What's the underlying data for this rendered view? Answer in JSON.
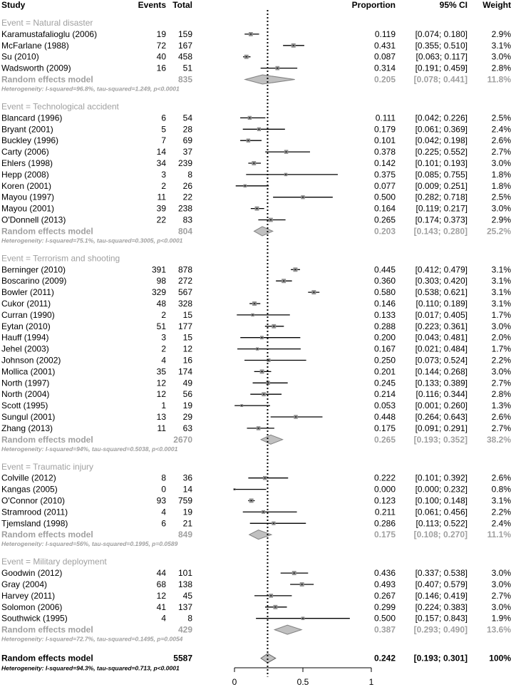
{
  "chart_data": {
    "type": "forest",
    "headers": {
      "study": "Study",
      "events": "Events",
      "total": "Total",
      "proportion": "Proportion",
      "ci": "95% CI",
      "weight": "Weight"
    },
    "x_axis": {
      "ticks": [
        0,
        0.5,
        1
      ],
      "tick_labels": [
        "0",
        "0.5",
        "1"
      ],
      "range": [
        0,
        1
      ]
    },
    "reference_line": 0.242,
    "groups": [
      {
        "label": "Event = Natural disaster",
        "studies": [
          {
            "name": "Karamustafalioglu (2006)",
            "events": "19",
            "total": "159",
            "p": 0.119,
            "lo": 0.074,
            "hi": 0.18,
            "proportion": "0.119",
            "ci": "[0.074; 0.180]",
            "weight": "2.9%"
          },
          {
            "name": "McFarlane (1988)",
            "events": "72",
            "total": "167",
            "p": 0.431,
            "lo": 0.355,
            "hi": 0.51,
            "proportion": "0.431",
            "ci": "[0.355; 0.510]",
            "weight": "3.1%"
          },
          {
            "name": "Su (2010)",
            "events": "40",
            "total": "458",
            "p": 0.087,
            "lo": 0.063,
            "hi": 0.117,
            "proportion": "0.087",
            "ci": "[0.063; 0.117]",
            "weight": "3.0%"
          },
          {
            "name": "Wadsworth (2009)",
            "events": "16",
            "total": "51",
            "p": 0.314,
            "lo": 0.191,
            "hi": 0.459,
            "proportion": "0.314",
            "ci": "[0.191; 0.459]",
            "weight": "2.8%"
          }
        ],
        "summary": {
          "label": "Random effects model",
          "total": "835",
          "p": 0.205,
          "lo": 0.078,
          "hi": 0.441,
          "proportion": "0.205",
          "ci": "[0.078; 0.441]",
          "weight": "11.8%"
        },
        "heterogeneity": "Heterogeneity: I-squared=96.8%, tau-squared=1.249, p<0.0001"
      },
      {
        "label": "Event = Technological accident",
        "studies": [
          {
            "name": "Blancard (1996)",
            "events": "6",
            "total": "54",
            "p": 0.111,
            "lo": 0.042,
            "hi": 0.226,
            "proportion": "0.111",
            "ci": "[0.042; 0.226]",
            "weight": "2.5%"
          },
          {
            "name": "Bryant (2001)",
            "events": "5",
            "total": "28",
            "p": 0.179,
            "lo": 0.061,
            "hi": 0.369,
            "proportion": "0.179",
            "ci": "[0.061; 0.369]",
            "weight": "2.4%"
          },
          {
            "name": "Buckley (1996)",
            "events": "7",
            "total": "69",
            "p": 0.101,
            "lo": 0.042,
            "hi": 0.198,
            "proportion": "0.101",
            "ci": "[0.042; 0.198]",
            "weight": "2.6%"
          },
          {
            "name": "Carty (2006)",
            "events": "14",
            "total": "37",
            "p": 0.378,
            "lo": 0.225,
            "hi": 0.552,
            "proportion": "0.378",
            "ci": "[0.225; 0.552]",
            "weight": "2.7%"
          },
          {
            "name": "Ehlers (1998)",
            "events": "34",
            "total": "239",
            "p": 0.142,
            "lo": 0.101,
            "hi": 0.193,
            "proportion": "0.142",
            "ci": "[0.101; 0.193]",
            "weight": "3.0%"
          },
          {
            "name": "Hepp (2008)",
            "events": "3",
            "total": "8",
            "p": 0.375,
            "lo": 0.085,
            "hi": 0.755,
            "proportion": "0.375",
            "ci": "[0.085; 0.755]",
            "weight": "1.8%"
          },
          {
            "name": "Koren (2001)",
            "events": "2",
            "total": "26",
            "p": 0.077,
            "lo": 0.009,
            "hi": 0.251,
            "proportion": "0.077",
            "ci": "[0.009; 0.251]",
            "weight": "1.8%"
          },
          {
            "name": "Mayou (1997)",
            "events": "11",
            "total": "22",
            "p": 0.5,
            "lo": 0.282,
            "hi": 0.718,
            "proportion": "0.500",
            "ci": "[0.282; 0.718]",
            "weight": "2.5%"
          },
          {
            "name": "Mayou (2001)",
            "events": "39",
            "total": "238",
            "p": 0.164,
            "lo": 0.119,
            "hi": 0.217,
            "proportion": "0.164",
            "ci": "[0.119; 0.217]",
            "weight": "3.0%"
          },
          {
            "name": "O'Donnell (2013)",
            "events": "22",
            "total": "83",
            "p": 0.265,
            "lo": 0.174,
            "hi": 0.373,
            "proportion": "0.265",
            "ci": "[0.174; 0.373]",
            "weight": "2.9%"
          }
        ],
        "summary": {
          "label": "Random effects model",
          "total": "804",
          "p": 0.203,
          "lo": 0.143,
          "hi": 0.28,
          "proportion": "0.203",
          "ci": "[0.143; 0.280]",
          "weight": "25.2%"
        },
        "heterogeneity": "Heterogeneity: I-squared=75.1%, tau-squared=0.3005, p<0.0001"
      },
      {
        "label": "Event = Terrorism and shooting",
        "studies": [
          {
            "name": "Berninger (2010)",
            "events": "391",
            "total": "878",
            "p": 0.445,
            "lo": 0.412,
            "hi": 0.479,
            "proportion": "0.445",
            "ci": "[0.412; 0.479]",
            "weight": "3.1%"
          },
          {
            "name": "Boscarino (2009)",
            "events": "98",
            "total": "272",
            "p": 0.36,
            "lo": 0.303,
            "hi": 0.42,
            "proportion": "0.360",
            "ci": "[0.303; 0.420]",
            "weight": "3.1%"
          },
          {
            "name": "Bowler (2011)",
            "events": "329",
            "total": "567",
            "p": 0.58,
            "lo": 0.538,
            "hi": 0.621,
            "proportion": "0.580",
            "ci": "[0.538; 0.621]",
            "weight": "3.1%"
          },
          {
            "name": "Cukor (2011)",
            "events": "48",
            "total": "328",
            "p": 0.146,
            "lo": 0.11,
            "hi": 0.189,
            "proportion": "0.146",
            "ci": "[0.110; 0.189]",
            "weight": "3.1%"
          },
          {
            "name": "Curran (1990)",
            "events": "2",
            "total": "15",
            "p": 0.133,
            "lo": 0.017,
            "hi": 0.405,
            "proportion": "0.133",
            "ci": "[0.017; 0.405]",
            "weight": "1.7%"
          },
          {
            "name": "Eytan (2010)",
            "events": "51",
            "total": "177",
            "p": 0.288,
            "lo": 0.223,
            "hi": 0.361,
            "proportion": "0.288",
            "ci": "[0.223; 0.361]",
            "weight": "3.0%"
          },
          {
            "name": "Hauff (1994)",
            "events": "3",
            "total": "15",
            "p": 0.2,
            "lo": 0.043,
            "hi": 0.481,
            "proportion": "0.200",
            "ci": "[0.043; 0.481]",
            "weight": "2.0%"
          },
          {
            "name": "Jehel (2003)",
            "events": "2",
            "total": "12",
            "p": 0.167,
            "lo": 0.021,
            "hi": 0.484,
            "proportion": "0.167",
            "ci": "[0.021; 0.484]",
            "weight": "1.7%"
          },
          {
            "name": "Johnson (2002)",
            "events": "4",
            "total": "16",
            "p": 0.25,
            "lo": 0.073,
            "hi": 0.524,
            "proportion": "0.250",
            "ci": "[0.073; 0.524]",
            "weight": "2.2%"
          },
          {
            "name": "Mollica (2001)",
            "events": "35",
            "total": "174",
            "p": 0.201,
            "lo": 0.144,
            "hi": 0.268,
            "proportion": "0.201",
            "ci": "[0.144; 0.268]",
            "weight": "3.0%"
          },
          {
            "name": "North (1997)",
            "events": "12",
            "total": "49",
            "p": 0.245,
            "lo": 0.133,
            "hi": 0.389,
            "proportion": "0.245",
            "ci": "[0.133; 0.389]",
            "weight": "2.7%"
          },
          {
            "name": "North (2004)",
            "events": "12",
            "total": "56",
            "p": 0.214,
            "lo": 0.116,
            "hi": 0.344,
            "proportion": "0.214",
            "ci": "[0.116; 0.344]",
            "weight": "2.8%"
          },
          {
            "name": "Scott (1995)",
            "events": "1",
            "total": "19",
            "p": 0.053,
            "lo": 0.001,
            "hi": 0.26,
            "proportion": "0.053",
            "ci": "[0.001; 0.260]",
            "weight": "1.3%"
          },
          {
            "name": "Sungul (2001)",
            "events": "13",
            "total": "29",
            "p": 0.448,
            "lo": 0.264,
            "hi": 0.643,
            "proportion": "0.448",
            "ci": "[0.264; 0.643]",
            "weight": "2.6%"
          },
          {
            "name": "Zhang (2013)",
            "events": "11",
            "total": "63",
            "p": 0.175,
            "lo": 0.091,
            "hi": 0.291,
            "proportion": "0.175",
            "ci": "[0.091; 0.291]",
            "weight": "2.7%"
          }
        ],
        "summary": {
          "label": "Random effects model",
          "total": "2670",
          "p": 0.265,
          "lo": 0.193,
          "hi": 0.352,
          "proportion": "0.265",
          "ci": "[0.193; 0.352]",
          "weight": "38.2%"
        },
        "heterogeneity": "Heterogeneity: I-squared=94%, tau-squared=0.5038, p<0.0001"
      },
      {
        "label": "Event = Traumatic injury",
        "studies": [
          {
            "name": "Colville (2012)",
            "events": "8",
            "total": "36",
            "p": 0.222,
            "lo": 0.101,
            "hi": 0.392,
            "proportion": "0.222",
            "ci": "[0.101; 0.392]",
            "weight": "2.6%"
          },
          {
            "name": "Kangas (2005)",
            "events": "0",
            "total": "14",
            "p": 0.0,
            "lo": 0.0,
            "hi": 0.232,
            "proportion": "0.000",
            "ci": "[0.000; 0.232]",
            "weight": "0.8%"
          },
          {
            "name": "O'Connor (2010)",
            "events": "93",
            "total": "759",
            "p": 0.123,
            "lo": 0.1,
            "hi": 0.148,
            "proportion": "0.123",
            "ci": "[0.100; 0.148]",
            "weight": "3.1%"
          },
          {
            "name": "Stramrood (2011)",
            "events": "4",
            "total": "19",
            "p": 0.211,
            "lo": 0.061,
            "hi": 0.456,
            "proportion": "0.211",
            "ci": "[0.061; 0.456]",
            "weight": "2.2%"
          },
          {
            "name": "Tjemsland (1998)",
            "events": "6",
            "total": "21",
            "p": 0.286,
            "lo": 0.113,
            "hi": 0.522,
            "proportion": "0.286",
            "ci": "[0.113; 0.522]",
            "weight": "2.4%"
          }
        ],
        "summary": {
          "label": "Random effects model",
          "total": "849",
          "p": 0.175,
          "lo": 0.108,
          "hi": 0.27,
          "proportion": "0.175",
          "ci": "[0.108; 0.270]",
          "weight": "11.1%"
        },
        "heterogeneity": "Heterogeneity: I-squared=56%, tau-squared=0.1995, p=0.0589"
      },
      {
        "label": "Event = Military deployment",
        "studies": [
          {
            "name": "Goodwin (2012)",
            "events": "44",
            "total": "101",
            "p": 0.436,
            "lo": 0.337,
            "hi": 0.538,
            "proportion": "0.436",
            "ci": "[0.337; 0.538]",
            "weight": "3.0%"
          },
          {
            "name": "Gray (2004)",
            "events": "68",
            "total": "138",
            "p": 0.493,
            "lo": 0.407,
            "hi": 0.579,
            "proportion": "0.493",
            "ci": "[0.407; 0.579]",
            "weight": "3.0%"
          },
          {
            "name": "Harvey (2011)",
            "events": "12",
            "total": "45",
            "p": 0.267,
            "lo": 0.146,
            "hi": 0.419,
            "proportion": "0.267",
            "ci": "[0.146; 0.419]",
            "weight": "2.7%"
          },
          {
            "name": "Solomon (2006)",
            "events": "41",
            "total": "137",
            "p": 0.299,
            "lo": 0.224,
            "hi": 0.383,
            "proportion": "0.299",
            "ci": "[0.224; 0.383]",
            "weight": "3.0%"
          },
          {
            "name": "Southwick (1995)",
            "events": "4",
            "total": "8",
            "p": 0.5,
            "lo": 0.157,
            "hi": 0.843,
            "proportion": "0.500",
            "ci": "[0.157; 0.843]",
            "weight": "1.9%"
          }
        ],
        "summary": {
          "label": "Random effects model",
          "total": "429",
          "p": 0.387,
          "lo": 0.293,
          "hi": 0.49,
          "proportion": "0.387",
          "ci": "[0.293; 0.490]",
          "weight": "13.6%"
        },
        "heterogeneity": "Heterogeneity: I-squared=72.7%, tau-squared=0.1495, p=0.0054"
      }
    ],
    "overall": {
      "label": "Random effects model",
      "total": "5587",
      "p": 0.242,
      "lo": 0.193,
      "hi": 0.301,
      "proportion": "0.242",
      "ci": "[0.193; 0.301]",
      "weight": "100%",
      "heterogeneity": "Heterogeneity: I-squared=94.3%, tau-squared=0.713, p<0.0001"
    },
    "colors": {
      "text": "#000000",
      "subgroup_text": "#a0a0a0",
      "diamond_fill": "#c0c0c0",
      "diamond_stroke": "#808080",
      "box": "#909090"
    }
  }
}
